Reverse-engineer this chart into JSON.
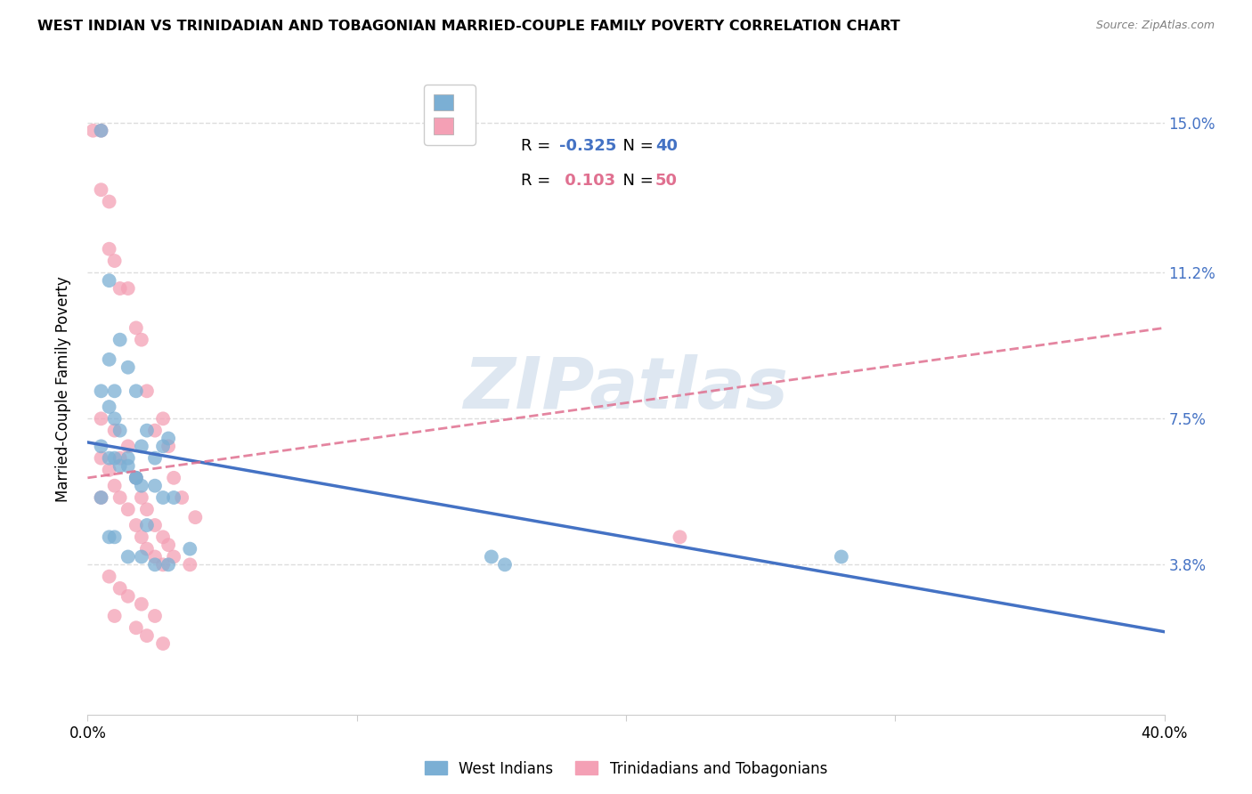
{
  "title": "WEST INDIAN VS TRINIDADIAN AND TOBAGONIAN MARRIED-COUPLE FAMILY POVERTY CORRELATION CHART",
  "source": "Source: ZipAtlas.com",
  "ylabel": "Married-Couple Family Poverty",
  "xlim": [
    0.0,
    0.4
  ],
  "ylim": [
    0.0,
    0.165
  ],
  "yticks": [
    0.038,
    0.075,
    0.112,
    0.15
  ],
  "ytick_labels": [
    "3.8%",
    "7.5%",
    "11.2%",
    "15.0%"
  ],
  "xticks": [
    0.0,
    0.1,
    0.2,
    0.3,
    0.4
  ],
  "grid_color": "#dddddd",
  "watermark": "ZIPatlas",
  "blue_color": "#7bafd4",
  "pink_color": "#f4a0b5",
  "blue_line_color": "#4472c4",
  "pink_line_color": "#e07090",
  "blue_R": "-0.325",
  "blue_N": "40",
  "pink_R": "0.103",
  "pink_N": "50",
  "west_indians_label": "West Indians",
  "trinidadians_label": "Trinidadians and Tobagonians",
  "blue_line_x0": 0.0,
  "blue_line_y0": 0.069,
  "blue_line_x1": 0.4,
  "blue_line_y1": 0.021,
  "pink_line_x0": 0.0,
  "pink_line_y0": 0.06,
  "pink_line_x1": 0.4,
  "pink_line_y1": 0.098,
  "blue_scatter_x": [
    0.005,
    0.008,
    0.008,
    0.01,
    0.012,
    0.015,
    0.018,
    0.02,
    0.022,
    0.025,
    0.005,
    0.008,
    0.01,
    0.012,
    0.015,
    0.018,
    0.02,
    0.025,
    0.028,
    0.03,
    0.005,
    0.008,
    0.01,
    0.012,
    0.015,
    0.018,
    0.022,
    0.028,
    0.032,
    0.038,
    0.005,
    0.008,
    0.01,
    0.015,
    0.02,
    0.025,
    0.03,
    0.15,
    0.155,
    0.28
  ],
  "blue_scatter_y": [
    0.148,
    0.11,
    0.09,
    0.082,
    0.095,
    0.088,
    0.082,
    0.068,
    0.072,
    0.065,
    0.082,
    0.078,
    0.075,
    0.072,
    0.065,
    0.06,
    0.058,
    0.058,
    0.068,
    0.07,
    0.068,
    0.065,
    0.065,
    0.063,
    0.063,
    0.06,
    0.048,
    0.055,
    0.055,
    0.042,
    0.055,
    0.045,
    0.045,
    0.04,
    0.04,
    0.038,
    0.038,
    0.04,
    0.038,
    0.04
  ],
  "pink_scatter_x": [
    0.002,
    0.005,
    0.005,
    0.005,
    0.005,
    0.008,
    0.008,
    0.01,
    0.01,
    0.012,
    0.012,
    0.015,
    0.015,
    0.018,
    0.018,
    0.02,
    0.02,
    0.022,
    0.022,
    0.025,
    0.025,
    0.028,
    0.028,
    0.03,
    0.03,
    0.032,
    0.032,
    0.035,
    0.038,
    0.04,
    0.005,
    0.008,
    0.01,
    0.012,
    0.015,
    0.018,
    0.02,
    0.022,
    0.025,
    0.028,
    0.008,
    0.012,
    0.015,
    0.02,
    0.025,
    0.01,
    0.018,
    0.022,
    0.028,
    0.22
  ],
  "pink_scatter_y": [
    0.148,
    0.148,
    0.133,
    0.075,
    0.055,
    0.13,
    0.118,
    0.115,
    0.072,
    0.108,
    0.065,
    0.108,
    0.068,
    0.098,
    0.06,
    0.095,
    0.055,
    0.082,
    0.052,
    0.072,
    0.048,
    0.075,
    0.045,
    0.068,
    0.043,
    0.06,
    0.04,
    0.055,
    0.038,
    0.05,
    0.065,
    0.062,
    0.058,
    0.055,
    0.052,
    0.048,
    0.045,
    0.042,
    0.04,
    0.038,
    0.035,
    0.032,
    0.03,
    0.028,
    0.025,
    0.025,
    0.022,
    0.02,
    0.018,
    0.045
  ]
}
